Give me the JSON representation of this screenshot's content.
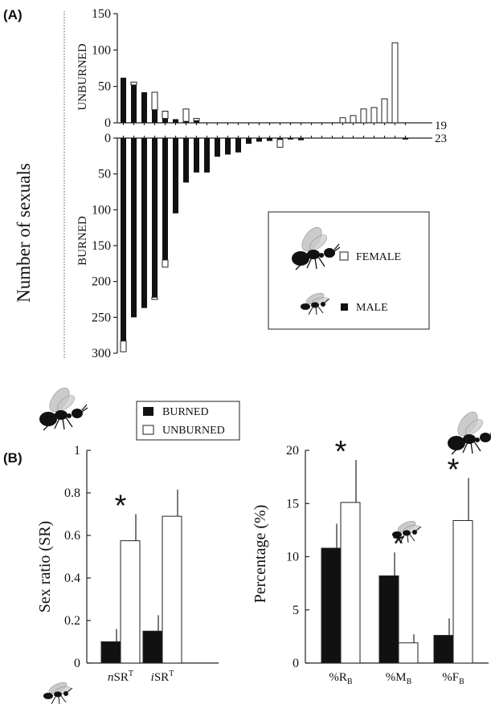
{
  "colors": {
    "burned": "#111111",
    "unburned": "#ffffff",
    "outline": "#222222"
  },
  "panel_A": {
    "label": "(A)",
    "ylabel": "Number of sexuals",
    "unburned_label": "UNBURNED",
    "burned_label": "BURNED",
    "unburned_count_label": "19",
    "burned_count_label": "23",
    "legend": {
      "female": "FEMALE",
      "male": "MALE"
    }
  },
  "panel_B": {
    "label": "(B)",
    "legend": {
      "burned": "BURNED",
      "unburned": "UNBURNED"
    },
    "sig_mark": "*"
  },
  "chart_data": [
    {
      "type": "bar",
      "panel": "A-unburned",
      "ylim": [
        0,
        150
      ],
      "yticks": [
        0,
        50,
        100,
        150
      ],
      "colonies": 19,
      "series": [
        {
          "name": "MALE",
          "values": [
            62,
            52,
            42,
            18,
            6,
            5,
            2,
            3,
            0,
            0,
            0,
            0,
            0,
            0,
            0,
            0,
            0,
            0,
            0,
            0,
            0,
            0,
            0,
            0,
            0,
            0,
            0,
            0
          ]
        },
        {
          "name": "FEMALE",
          "values": [
            0,
            4,
            0,
            24,
            10,
            0,
            17,
            3,
            0,
            0,
            0,
            0,
            0,
            0,
            0,
            0,
            0,
            0,
            0,
            0,
            0,
            7,
            10,
            19,
            21,
            33,
            110,
            0
          ]
        }
      ]
    },
    {
      "type": "bar",
      "panel": "A-burned",
      "ylim": [
        0,
        300
      ],
      "yticks": [
        0,
        50,
        100,
        150,
        200,
        250,
        300
      ],
      "colonies": 23,
      "series": [
        {
          "name": "MALE",
          "values": [
            283,
            250,
            237,
            222,
            170,
            105,
            62,
            48,
            48,
            26,
            23,
            20,
            8,
            5,
            4,
            2,
            2,
            3,
            0,
            0,
            0,
            0,
            0,
            0,
            0,
            0,
            0,
            2
          ]
        },
        {
          "name": "FEMALE",
          "values": [
            15,
            0,
            0,
            3,
            10,
            0,
            0,
            0,
            0,
            0,
            0,
            0,
            0,
            0,
            0,
            11,
            0,
            0,
            0,
            0,
            0,
            0,
            0,
            0,
            0,
            0,
            0,
            0
          ]
        }
      ]
    },
    {
      "type": "bar",
      "panel": "B-left",
      "ylabel": "Sex ratio (SR)",
      "ylim": [
        0,
        1
      ],
      "yticks": [
        "0",
        "0.2",
        "0.4",
        "0.6",
        "0.8",
        "1"
      ],
      "categories": [
        {
          "italic": "n",
          "main": "SR",
          "sup": "T"
        },
        {
          "italic": "i",
          "main": "SR",
          "sup": "T"
        }
      ],
      "series": [
        {
          "name": "BURNED",
          "values": [
            0.1,
            0.15
          ],
          "errors": [
            0.06,
            0.075
          ]
        },
        {
          "name": "UNBURNED",
          "values": [
            0.575,
            0.69
          ],
          "errors": [
            0.125,
            0.125
          ]
        }
      ],
      "significant": [
        true,
        false
      ]
    },
    {
      "type": "bar",
      "panel": "B-right",
      "ylabel": "Percentage (%)",
      "ylim": [
        0,
        20
      ],
      "yticks": [
        "0",
        "5",
        "10",
        "15",
        "20"
      ],
      "categories": [
        {
          "main": "%R",
          "sub": "B"
        },
        {
          "main": "%M",
          "sub": "B"
        },
        {
          "main": "%F",
          "sub": "B"
        }
      ],
      "series": [
        {
          "name": "BURNED",
          "values": [
            10.8,
            8.2,
            2.6
          ],
          "errors": [
            2.3,
            2.2,
            1.6
          ]
        },
        {
          "name": "UNBURNED",
          "values": [
            15.1,
            1.9,
            13.4
          ],
          "errors": [
            4.0,
            0.8,
            4.0
          ]
        }
      ],
      "significant": [
        true,
        true,
        true
      ]
    }
  ]
}
